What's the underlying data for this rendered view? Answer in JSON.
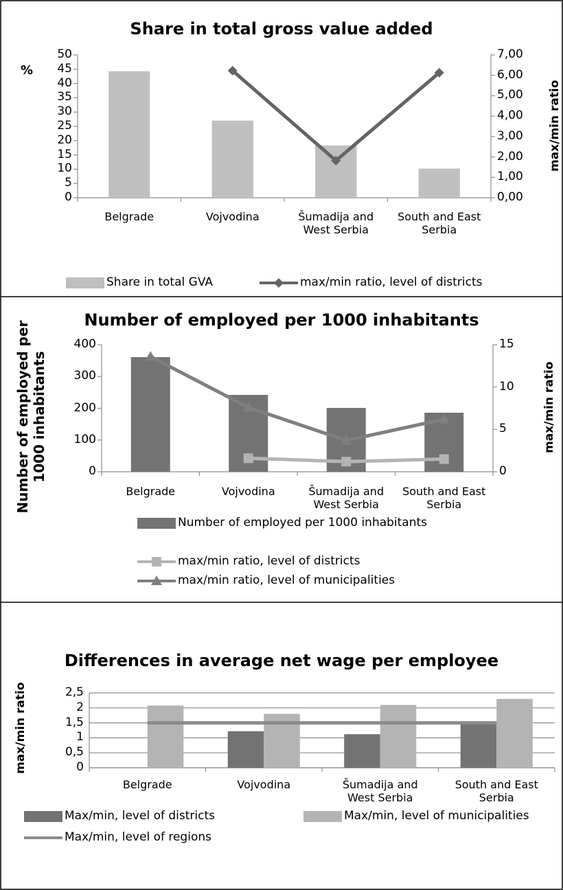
{
  "chart_data": [
    {
      "type": "bar",
      "title": "Share in total gross value added",
      "categories": [
        "Belgrade",
        "Vojvodina",
        "Šumadija and West Serbia",
        "South and East Serbia"
      ],
      "ylabel": "%",
      "y2label": "max/min ratio",
      "ylim": [
        0,
        50
      ],
      "yticks": [
        0,
        5,
        10,
        15,
        20,
        25,
        30,
        35,
        40,
        45,
        50
      ],
      "y2lim": [
        0,
        7
      ],
      "y2ticks": [
        {
          "value": 0,
          "label": "0,00"
        },
        {
          "value": 1,
          "label": "1,00"
        },
        {
          "value": 2,
          "label": "2,00"
        },
        {
          "value": 3,
          "label": "3,00"
        },
        {
          "value": 4,
          "label": "4,00"
        },
        {
          "value": 5,
          "label": "5,00"
        },
        {
          "value": 6,
          "label": "6,00"
        },
        {
          "value": 7,
          "label": "7,00"
        }
      ],
      "grid": false,
      "series": [
        {
          "name": "Share in total GVA",
          "type": "bar",
          "color": "#bfbfbf",
          "values": [
            44.3,
            27,
            18.3,
            10.2
          ]
        },
        {
          "name": "max/min ratio, level of districts",
          "type": "line",
          "axis": "y2",
          "marker": "diamond",
          "color": "#646464",
          "values": [
            null,
            6.23,
            1.82,
            6.13
          ]
        }
      ]
    },
    {
      "type": "bar",
      "title": "Number of employed per 1000 inhabitants",
      "categories": [
        "Belgrade",
        "Vojvodina",
        "Šumadija and West Serbia",
        "South and East Serbia"
      ],
      "ylabel": "Number of employed per 1000 inhabitants",
      "y2label": "max/min ratio",
      "ylim": [
        0,
        400
      ],
      "yticks": [
        0,
        100,
        200,
        300,
        400
      ],
      "y2lim": [
        0,
        15
      ],
      "y2ticks": [
        0,
        5,
        10,
        15
      ],
      "grid": false,
      "series": [
        {
          "name": "Number of employed per 1000 inhabitants",
          "type": "bar",
          "color": "#737373",
          "values": [
            361,
            242,
            201,
            186
          ]
        },
        {
          "name": "max/min ratio, level of districts",
          "type": "line",
          "axis": "y2",
          "marker": "square",
          "color": "#b4b4b4",
          "values": [
            null,
            1.6,
            1.2,
            1.5
          ]
        },
        {
          "name": "max/min ratio, level of municipalities",
          "type": "line",
          "axis": "y2",
          "marker": "triangle",
          "color": "#7f7f7f",
          "values": [
            13.6,
            7.6,
            3.7,
            6.2
          ]
        }
      ]
    },
    {
      "type": "bar",
      "title": "Differences in average net wage per employee",
      "categories": [
        "Belgrade",
        "Vojvodina",
        "Šumadija and West Serbia",
        "South and East Serbia"
      ],
      "ylabel": "max/min ratio",
      "ylim": [
        0,
        2.5
      ],
      "yticks": [
        0,
        {
          "value": 0.5,
          "label": "0,5"
        },
        1,
        {
          "value": 1.5,
          "label": "1,5"
        },
        2,
        {
          "value": 2.5,
          "label": "2,5"
        }
      ],
      "grid": true,
      "series": [
        {
          "name": "Max/min, level of districts",
          "type": "bar",
          "color": "#737373",
          "values": [
            null,
            1.22,
            1.12,
            1.48
          ]
        },
        {
          "name": "Max/min, level of municipalities",
          "type": "bar",
          "color": "#b4b4b4",
          "values": [
            2.08,
            1.8,
            2.1,
            2.3
          ]
        },
        {
          "name": "Max/min, level of regions",
          "type": "line",
          "color": "#8c8c8c",
          "values": [
            1.5,
            1.5,
            1.5,
            1.5
          ]
        }
      ]
    }
  ]
}
